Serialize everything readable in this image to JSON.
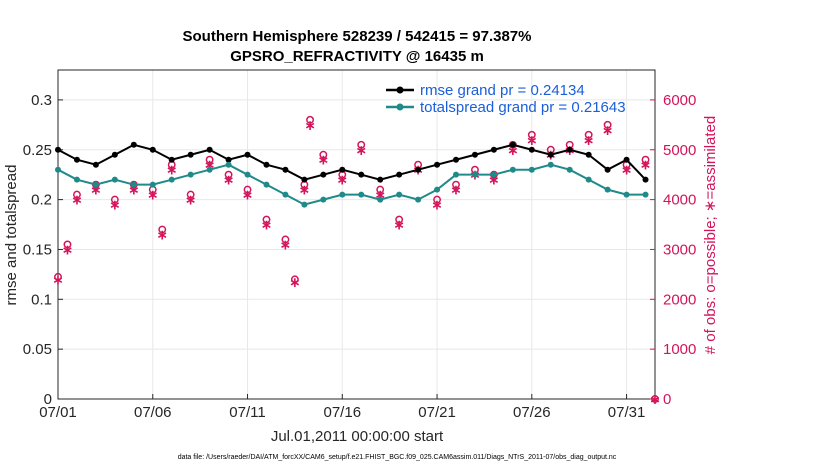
{
  "chart_data": {
    "type": "line",
    "title": "Southern Hemisphere 528239 / 542415 = 97.387%",
    "subtitle": "GPSRO_REFRACTIVITY @ 16435 m",
    "xlabel": "Jul.01,2011 00:00:00 start",
    "ylabel": "rmse and totalspread",
    "y2label": "# of obs: o=possible; ∗=assimilated",
    "footnote": "data file: /Users/raeder/DAI/ATM_forcXX/CAM6_setup/f.e21.FHIST_BGC.f09_025.CAM6assim.011/Diags_NTrS_2011-07/obs_diag_output.nc",
    "xlim": [
      0,
      31.5
    ],
    "ylim": [
      0,
      0.33
    ],
    "y2lim": [
      0,
      6600
    ],
    "x_ticks": [
      0,
      5,
      10,
      15,
      20,
      25,
      30
    ],
    "x_tick_labels": [
      "07/01",
      "07/06",
      "07/11",
      "07/16",
      "07/21",
      "07/26",
      "07/31"
    ],
    "y_ticks": [
      0,
      0.05,
      0.1,
      0.15,
      0.2,
      0.25,
      0.3
    ],
    "y_tick_labels": [
      "0",
      "0.05",
      "0.1",
      "0.15",
      "0.2",
      "0.25",
      "0.3"
    ],
    "y2_ticks": [
      0,
      1000,
      2000,
      3000,
      4000,
      5000,
      6000
    ],
    "y2_tick_labels": [
      "0",
      "1000",
      "2000",
      "3000",
      "4000",
      "5000",
      "6000"
    ],
    "grid": true,
    "legend_position": "top-right",
    "legend": [
      "rmse grand pr = 0.24134",
      "totalspread grand pr = 0.21643"
    ],
    "colors": {
      "rmse": "#000000",
      "spread": "#1f8a8a",
      "obs": "#d4145a",
      "legend_text": "#1a5fd9",
      "axis": "#262626"
    },
    "series": [
      {
        "name": "rmse",
        "x": [
          0,
          1,
          2,
          3,
          4,
          5,
          6,
          7,
          8,
          9,
          10,
          11,
          12,
          13,
          14,
          15,
          16,
          17,
          18,
          19,
          20,
          21,
          22,
          23,
          24,
          25,
          26,
          27,
          28,
          29,
          30,
          31
        ],
        "values": [
          0.25,
          0.24,
          0.235,
          0.245,
          0.255,
          0.25,
          0.24,
          0.245,
          0.25,
          0.24,
          0.245,
          0.235,
          0.23,
          0.22,
          0.225,
          0.23,
          0.225,
          0.22,
          0.225,
          0.23,
          0.235,
          0.24,
          0.245,
          0.25,
          0.255,
          0.25,
          0.245,
          0.25,
          0.245,
          0.23,
          0.24,
          0.22
        ]
      },
      {
        "name": "totalspread",
        "x": [
          0,
          1,
          2,
          3,
          4,
          5,
          6,
          7,
          8,
          9,
          10,
          11,
          12,
          13,
          14,
          15,
          16,
          17,
          18,
          19,
          20,
          21,
          22,
          23,
          24,
          25,
          26,
          27,
          28,
          29,
          30,
          31
        ],
        "values": [
          0.23,
          0.22,
          0.215,
          0.22,
          0.215,
          0.215,
          0.22,
          0.225,
          0.23,
          0.235,
          0.225,
          0.215,
          0.205,
          0.195,
          0.2,
          0.205,
          0.205,
          0.2,
          0.205,
          0.2,
          0.21,
          0.225,
          0.225,
          0.225,
          0.23,
          0.23,
          0.235,
          0.23,
          0.22,
          0.21,
          0.205,
          0.205
        ]
      },
      {
        "name": "obs_possible",
        "x": [
          0,
          0.5,
          1,
          2,
          3,
          4,
          5,
          5.5,
          6,
          7,
          8,
          9,
          10,
          11,
          12,
          12.5,
          13,
          13.3,
          14,
          15,
          16,
          17,
          18,
          19,
          20,
          21,
          22,
          23,
          24,
          25,
          26,
          27,
          28,
          29,
          30,
          31,
          31.5
        ],
        "values": [
          2450,
          3100,
          4100,
          4300,
          4000,
          4300,
          4200,
          3400,
          4700,
          4100,
          4800,
          4500,
          4200,
          3600,
          3200,
          2400,
          4300,
          5600,
          4900,
          4500,
          5100,
          4200,
          3600,
          4700,
          4000,
          4300,
          4600,
          4500,
          5100,
          5300,
          5000,
          5100,
          5300,
          5500,
          4700,
          4800,
          0
        ]
      },
      {
        "name": "obs_assimilated",
        "x": [
          0,
          0.5,
          1,
          2,
          3,
          4,
          5,
          5.5,
          6,
          7,
          8,
          9,
          10,
          11,
          12,
          12.5,
          13,
          13.3,
          14,
          15,
          16,
          17,
          18,
          19,
          20,
          21,
          22,
          23,
          24,
          25,
          26,
          27,
          28,
          29,
          30,
          31,
          31.5
        ],
        "values": [
          2400,
          3000,
          4000,
          4200,
          3900,
          4200,
          4100,
          3300,
          4600,
          4000,
          4700,
          4400,
          4100,
          3500,
          3100,
          2350,
          4200,
          5500,
          4800,
          4400,
          5000,
          4100,
          3500,
          4600,
          3900,
          4200,
          4500,
          4400,
          5000,
          5200,
          4900,
          5000,
          5200,
          5400,
          4600,
          4700,
          0
        ]
      }
    ]
  }
}
